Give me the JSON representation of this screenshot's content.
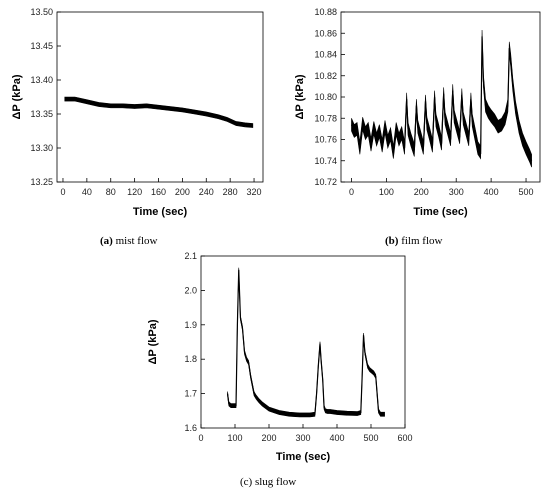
{
  "chart_data": [
    {
      "id": "a",
      "type": "line",
      "caption_letter": "(a)",
      "caption_text": " mist flow",
      "xlabel": "Time (sec)",
      "ylabel": "ΔP (kPa)",
      "xlim": [
        -10,
        335
      ],
      "ylim": [
        13.25,
        13.5
      ],
      "xticks": [
        "0",
        "40",
        "80",
        "120",
        "160",
        "200",
        "240",
        "280",
        "320"
      ],
      "yticks": [
        "13.25",
        "13.30",
        "13.35",
        "13.40",
        "13.45",
        "13.50"
      ],
      "series": [
        {
          "x": [
            3,
            20,
            40,
            60,
            80,
            100,
            120,
            140,
            160,
            180,
            200,
            220,
            240,
            260,
            275,
            290,
            305,
            318
          ],
          "y": [
            13.372,
            13.372,
            13.368,
            13.364,
            13.362,
            13.362,
            13.361,
            13.362,
            13.36,
            13.358,
            13.356,
            13.353,
            13.35,
            13.346,
            13.342,
            13.336,
            13.334,
            13.333
          ],
          "band": 0.006
        }
      ]
    },
    {
      "id": "b",
      "type": "line",
      "caption_letter": "(b)",
      "caption_text": " film flow",
      "xlabel": "Time (sec)",
      "ylabel": "ΔP (kPa)",
      "xlim": [
        -30,
        540
      ],
      "ylim": [
        10.72,
        10.88
      ],
      "xticks": [
        "0",
        "100",
        "200",
        "300",
        "400",
        "500"
      ],
      "yticks": [
        "10.72",
        "10.74",
        "10.76",
        "10.78",
        "10.80",
        "10.82",
        "10.84",
        "10.86",
        "10.88"
      ],
      "series": [
        {
          "x": [
            0,
            8,
            16,
            24,
            32,
            40,
            48,
            56,
            64,
            72,
            80,
            88,
            96,
            104,
            112,
            120,
            128,
            136,
            144,
            152,
            158,
            162,
            170,
            180,
            186,
            190,
            198,
            206,
            212,
            216,
            224,
            232,
            238,
            242,
            250,
            258,
            264,
            268,
            276,
            284,
            290,
            294,
            302,
            310,
            316,
            320,
            328,
            336,
            342,
            346,
            354,
            362,
            370,
            374,
            378,
            384,
            392,
            400,
            410,
            420,
            430,
            440,
            448,
            452,
            456,
            462,
            470,
            480,
            490,
            500,
            510,
            516
          ],
          "y": [
            10.774,
            10.768,
            10.77,
            10.752,
            10.775,
            10.766,
            10.77,
            10.755,
            10.771,
            10.76,
            10.768,
            10.754,
            10.772,
            10.758,
            10.765,
            10.748,
            10.77,
            10.76,
            10.766,
            10.752,
            10.798,
            10.77,
            10.76,
            10.75,
            10.792,
            10.772,
            10.762,
            10.752,
            10.796,
            10.775,
            10.765,
            10.754,
            10.8,
            10.778,
            10.768,
            10.756,
            10.803,
            10.78,
            10.77,
            10.76,
            10.806,
            10.782,
            10.772,
            10.762,
            10.802,
            10.78,
            10.77,
            10.76,
            10.798,
            10.778,
            10.765,
            10.752,
            10.748,
            10.857,
            10.815,
            10.792,
            10.786,
            10.782,
            10.778,
            10.772,
            10.774,
            10.78,
            10.792,
            10.846,
            10.835,
            10.812,
            10.79,
            10.772,
            10.76,
            10.752,
            10.745,
            10.74
          ],
          "band": 0.012
        }
      ]
    },
    {
      "id": "c",
      "type": "line",
      "caption_letter": "",
      "caption_text": "(c) slug flow",
      "xlabel": "Time (sec)",
      "ylabel": "ΔP (kPa)",
      "xlim": [
        0,
        600
      ],
      "ylim": [
        1.6,
        2.1
      ],
      "xticks": [
        "0",
        "100",
        "200",
        "300",
        "400",
        "500",
        "600"
      ],
      "yticks": [
        "1.6",
        "1.7",
        "1.8",
        "1.9",
        "2.0",
        "2.1"
      ],
      "series": [
        {
          "x": [
            78,
            82,
            88,
            96,
            103,
            107,
            111,
            116,
            122,
            128,
            134,
            140,
            146,
            150,
            156,
            162,
            170,
            180,
            200,
            230,
            260,
            290,
            320,
            335,
            340,
            345,
            350,
            353,
            358,
            362,
            366,
            372,
            380,
            400,
            430,
            460,
            470,
            474,
            478,
            482,
            486,
            490,
            496,
            502,
            508,
            514,
            518,
            522,
            528,
            534,
            540
          ],
          "y": [
            1.7,
            1.67,
            1.665,
            1.665,
            1.665,
            1.9,
            2.06,
            1.92,
            1.89,
            1.82,
            1.8,
            1.79,
            1.75,
            1.73,
            1.7,
            1.69,
            1.68,
            1.67,
            1.655,
            1.645,
            1.64,
            1.638,
            1.638,
            1.64,
            1.7,
            1.78,
            1.845,
            1.8,
            1.74,
            1.66,
            1.65,
            1.648,
            1.648,
            1.645,
            1.643,
            1.642,
            1.645,
            1.75,
            1.87,
            1.82,
            1.8,
            1.78,
            1.77,
            1.765,
            1.76,
            1.75,
            1.7,
            1.65,
            1.64,
            1.64,
            1.64
          ],
          "band": 0.012
        }
      ]
    }
  ]
}
